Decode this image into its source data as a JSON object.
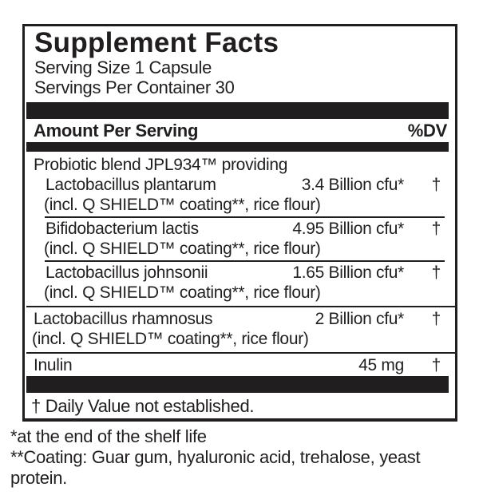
{
  "colors": {
    "ink": "#211e1f",
    "background": "#ffffff"
  },
  "panel": {
    "title": "Supplement Facts",
    "serving_size": "Serving Size 1 Capsule",
    "servings_per_container": "Servings Per Container 30",
    "columns": {
      "amount_header": "Amount Per Serving",
      "dv_header": "%DV"
    },
    "rows": [
      {
        "name": "Probiotic blend JPL934™ providing"
      },
      {
        "name": "Lactobacillus plantarum",
        "amount": "3.4 Billion cfu*",
        "dv": "†",
        "detail": "(incl. Q SHIELD™ coating**, rice flour)"
      },
      {
        "name": "Bifidobacterium lactis",
        "amount": "4.95 Billion cfu*",
        "dv": "†",
        "detail": "(incl. Q SHIELD™ coating**, rice flour)"
      },
      {
        "name": "Lactobacillus johnsonii",
        "amount": "1.65 Billion cfu*",
        "dv": "†",
        "detail": "(incl. Q SHIELD™ coating**, rice flour)"
      },
      {
        "name": "Lactobacillus rhamnosus",
        "amount": "2 Billion cfu*",
        "dv": "†",
        "detail": "(incl. Q SHIELD™ coating**, rice flour)"
      },
      {
        "name": "Inulin",
        "amount": "45 mg",
        "dv": "†"
      }
    ],
    "daily_value_footnote": "† Daily Value not established."
  },
  "footnotes": {
    "shelf_life": "*at the end of the shelf life",
    "coating": "**Coating: Guar gum, hyaluronic acid, trehalose, yeast protein."
  }
}
